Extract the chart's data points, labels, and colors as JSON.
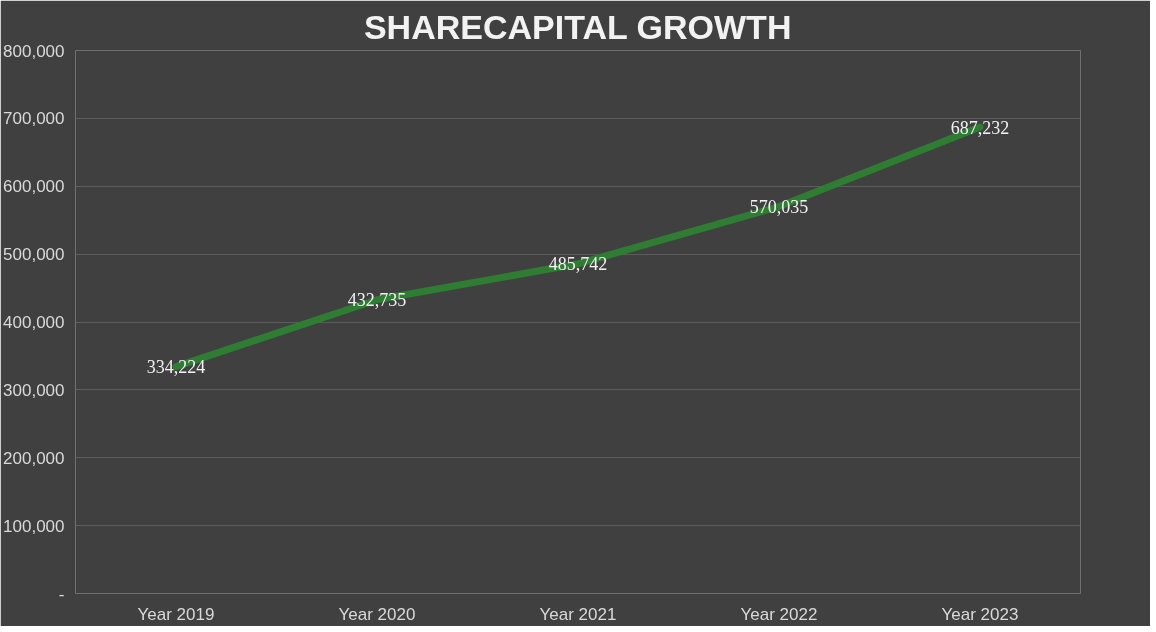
{
  "chart_data": {
    "type": "line",
    "title": "SHARECAPITAL GROWTH",
    "categories": [
      "Year 2019",
      "Year 2020",
      "Year 2021",
      "Year 2022",
      "Year 2023"
    ],
    "series": [
      {
        "color": "#2e7d32",
        "values": [
          334224,
          432735,
          485742,
          570035,
          687232
        ],
        "value_labels": [
          "334,224",
          "432,735",
          "485,742",
          "570,035",
          "687,232"
        ]
      }
    ],
    "ylim": [
      0,
      800000
    ],
    "yticks": [
      {
        "value": 0,
        "label": "-"
      },
      {
        "value": 100000,
        "label": "100,000"
      },
      {
        "value": 200000,
        "label": "200,000"
      },
      {
        "value": 300000,
        "label": "300,000"
      },
      {
        "value": 400000,
        "label": "400,000"
      },
      {
        "value": 500000,
        "label": "500,000"
      },
      {
        "value": 600000,
        "label": "600,000"
      },
      {
        "value": 700000,
        "label": "700,000"
      },
      {
        "value": 800000,
        "label": "800,000"
      }
    ],
    "grid": "y",
    "line_style": "solid"
  }
}
